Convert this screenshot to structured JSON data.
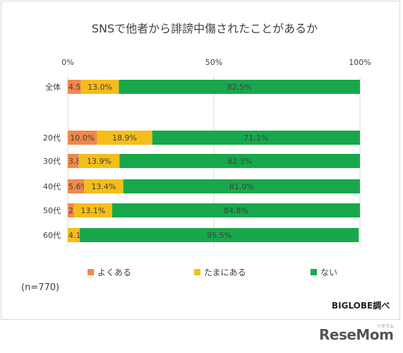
{
  "chart_data": {
    "type": "bar",
    "orientation": "horizontal-stacked-100",
    "title": "SNSで他者から誹謗中傷されたことがあるか",
    "categories": [
      "全体",
      "20代",
      "30代",
      "40代",
      "50代",
      "60代"
    ],
    "series": [
      {
        "name": "よくある",
        "color": "#f0884a",
        "values": [
          4.5,
          10.0,
          3.8,
          5.6,
          2.1,
          0
        ],
        "labels": [
          "4.5%",
          "10.0%",
          "3.8%",
          "5.6%",
          "2.1%",
          ""
        ]
      },
      {
        "name": "たまにある",
        "color": "#f5bd1a",
        "values": [
          13.0,
          18.9,
          13.9,
          13.4,
          13.1,
          4.1
        ],
        "labels": [
          "13.0%",
          "18.9%",
          "13.9%",
          "13.4%",
          "13.1%",
          "4.1%"
        ]
      },
      {
        "name": "ない",
        "color": "#18a84b",
        "values": [
          82.5,
          71.1,
          82.3,
          81.0,
          84.8,
          95.5
        ],
        "labels": [
          "82.5%",
          "71.1%",
          "82.3%",
          "81.0%",
          "84.8%",
          "95.5%"
        ]
      }
    ],
    "xlim": [
      0,
      100
    ],
    "xticks": [
      "0%",
      "50%",
      "100%"
    ],
    "xtick_values": [
      0,
      50,
      100
    ],
    "grid": true,
    "legend_position": "bottom"
  },
  "note": "(n=770)",
  "source": "BIGLOBE調べ",
  "watermark": "ReseMom",
  "watermark_sub": "リセマム"
}
